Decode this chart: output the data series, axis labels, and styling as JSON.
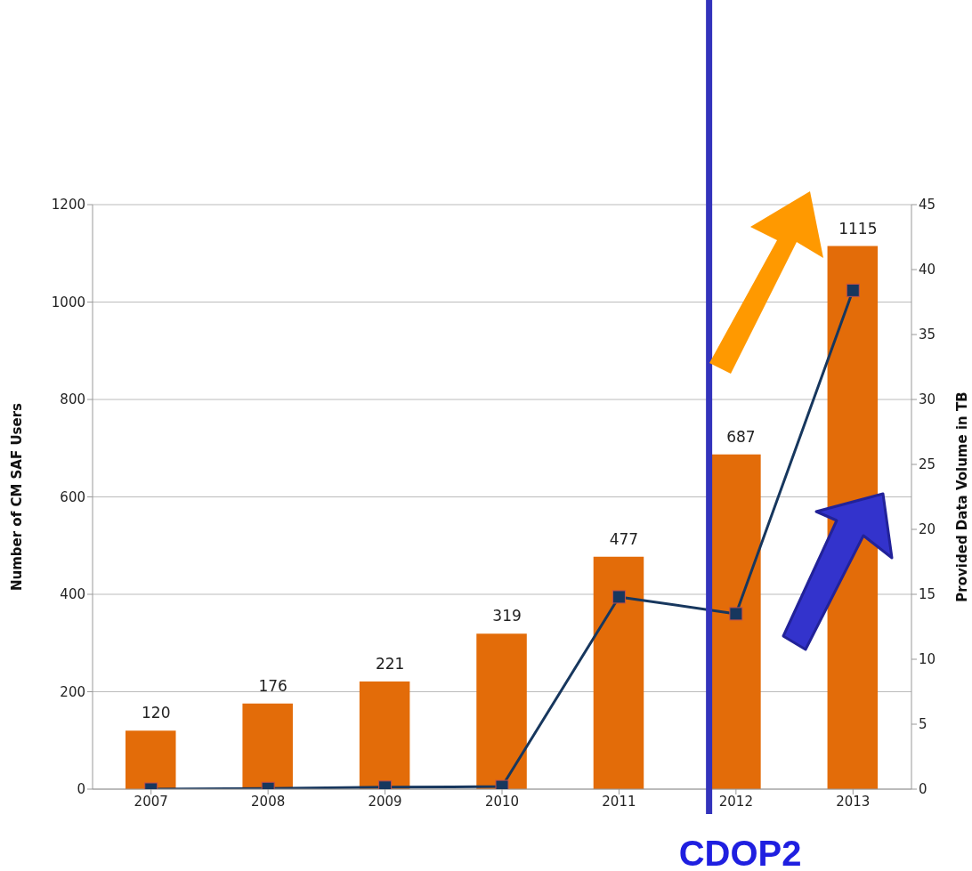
{
  "chart_data": {
    "type": "bar",
    "categories": [
      "2007",
      "2008",
      "2009",
      "2010",
      "2011",
      "2012",
      "2013"
    ],
    "series": [
      {
        "color": "#e36c09",
        "values": [
          120,
          176,
          221,
          319,
          477,
          687,
          1115
        ],
        "value_labels": [
          "120",
          "176",
          "221",
          "319",
          "477",
          "687",
          "1115"
        ]
      },
      {
        "type": "line",
        "axis": "y2",
        "color": "#17375e",
        "marker": "square",
        "values": [
          0,
          0.05,
          0.15,
          0.2,
          14.8,
          13.5,
          38.4
        ]
      }
    ],
    "ylabel": "Number of CM SAF Users",
    "y2label": "Provided Data Volume in TB",
    "ylim": [
      0,
      1200
    ],
    "yticks": [
      0,
      200,
      400,
      600,
      800,
      1000,
      1200
    ],
    "y2lim": [
      0,
      45
    ],
    "y2ticks": [
      0,
      5,
      10,
      15,
      20,
      25,
      30,
      35,
      40,
      45
    ],
    "grid": "y",
    "ref_lines": [
      {
        "axis": "x",
        "value": "2012",
        "label": "CDOP2",
        "color": "#3333bb"
      }
    ]
  }
}
